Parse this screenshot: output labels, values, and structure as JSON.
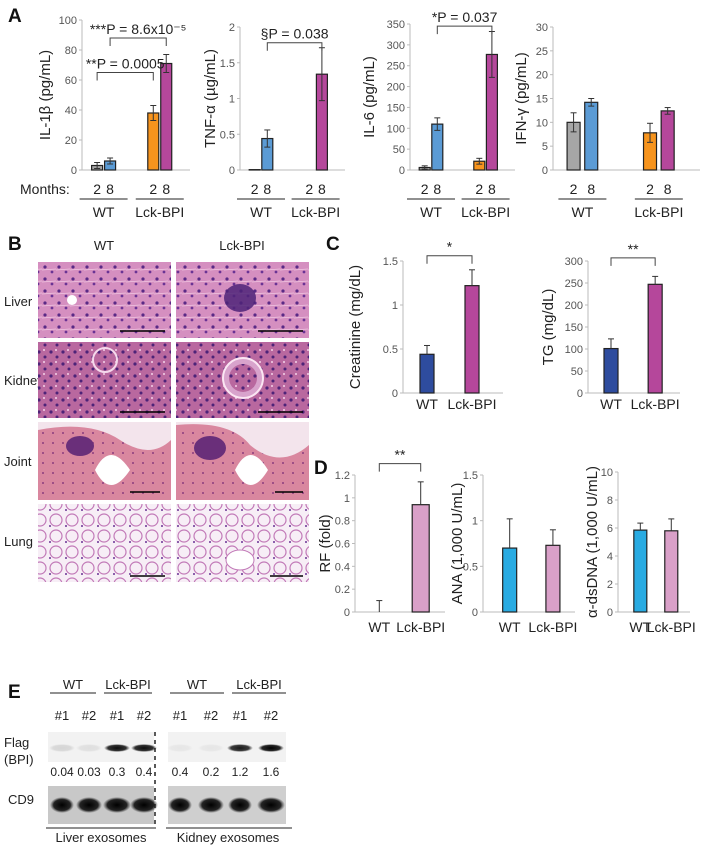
{
  "panels": {
    "a": "A",
    "b": "B",
    "c": "C",
    "d": "D",
    "e": "E"
  },
  "months_label": "Months:",
  "histology": {
    "columns": [
      "WT",
      "Lck-BPI"
    ],
    "rows": [
      "Liver",
      "Kidney",
      "Joint",
      "Lung"
    ]
  },
  "blot": {
    "groups": [
      "WT",
      "Lck-BPI",
      "WT",
      "Lck-BPI"
    ],
    "lanes": [
      "#1",
      "#2",
      "#1",
      "#2",
      "#1",
      "#2",
      "#1",
      "#2"
    ],
    "row_labels": {
      "flag_line1": "Flag",
      "flag_line2": "(BPI)",
      "cd9": "CD9"
    },
    "quant": [
      "0.04",
      "0.03",
      "0.3",
      "0.4",
      "0.4",
      "0.2",
      "1.2",
      "1.6"
    ],
    "tissues": [
      "Liver exosomes",
      "Kidney exosomes"
    ]
  },
  "colors": {
    "wt_2m": "#a6a6a6",
    "wt_8m": "#5b9bd5",
    "lck_2m": "#f7941d",
    "lck_8m": "#b5479b",
    "c_wt": "#2e4c9e",
    "c_lck": "#b5479b",
    "d_wt": "#29abe2",
    "d_lck": "#d9a0c8"
  },
  "chart_data": [
    {
      "type": "bar",
      "panel": "A",
      "ylabel": "IL-1β (pg/mL)",
      "ylim": [
        0,
        100
      ],
      "yticks": [
        "0",
        "20",
        "40",
        "60",
        "80",
        "100"
      ],
      "groups": [
        "WT",
        "Lck-BPI"
      ],
      "bar_labels": [
        "2",
        "8",
        "2",
        "8"
      ],
      "values": [
        3,
        6,
        38,
        71
      ],
      "errors": [
        2,
        2,
        5,
        6
      ],
      "colors": [
        "#a6a6a6",
        "#5b9bd5",
        "#f7941d",
        "#b5479b"
      ],
      "brackets": [
        {
          "from": 1,
          "to": 3,
          "level": 88,
          "label": "***P = 8.6x10⁻⁵"
        },
        {
          "from": 0,
          "to": 2,
          "level": 65,
          "label": "**P = 0.0005"
        }
      ]
    },
    {
      "type": "bar",
      "panel": "A",
      "ylabel": "TNF-α (µg/mL)",
      "ylim": [
        0,
        2
      ],
      "yticks": [
        "0",
        "0.5",
        "1",
        "1.5",
        "2"
      ],
      "groups": [
        "WT",
        "Lck-BPI"
      ],
      "bar_labels": [
        "2",
        "8",
        "2",
        "8"
      ],
      "values": [
        0.005,
        0.44,
        0,
        1.34
      ],
      "errors": [
        0,
        0.12,
        0,
        0.37
      ],
      "colors": [
        "#a6a6a6",
        "#5b9bd5",
        "#f7941d",
        "#b5479b"
      ],
      "brackets": [
        {
          "from": 1,
          "to": 3,
          "level": 1.78,
          "label": "§P = 0.038"
        }
      ]
    },
    {
      "type": "bar",
      "panel": "A",
      "ylabel": "IL-6 (pg/mL)",
      "ylim": [
        0,
        350
      ],
      "yticks": [
        "0",
        "50",
        "100",
        "150",
        "200",
        "250",
        "300",
        "350"
      ],
      "groups": [
        "WT",
        "Lck-BPI"
      ],
      "bar_labels": [
        "2",
        "8",
        "2",
        "8"
      ],
      "values": [
        6,
        110,
        21,
        277
      ],
      "errors": [
        4,
        15,
        7,
        55
      ],
      "colors": [
        "#a6a6a6",
        "#5b9bd5",
        "#f7941d",
        "#b5479b"
      ],
      "brackets": [
        {
          "from": 1,
          "to": 3,
          "level": 345,
          "label": "*P = 0.037"
        }
      ]
    },
    {
      "type": "bar",
      "panel": "A",
      "ylabel": "IFN-γ (pg/mL)",
      "ylim": [
        0,
        30
      ],
      "yticks": [
        "0",
        "5",
        "10",
        "15",
        "20",
        "25",
        "30"
      ],
      "groups": [
        "WT",
        "Lck-BPI"
      ],
      "bar_labels": [
        "2",
        "8",
        "2",
        "8"
      ],
      "values": [
        10,
        14.2,
        7.8,
        12.4
      ],
      "errors": [
        2,
        0.8,
        2,
        0.7
      ],
      "colors": [
        "#a6a6a6",
        "#5b9bd5",
        "#f7941d",
        "#b5479b"
      ],
      "brackets": []
    },
    {
      "type": "bar",
      "panel": "C",
      "ylabel": "Creatinine (mg/dL)",
      "ylim": [
        0,
        1.5
      ],
      "yticks": [
        "0",
        "0.5",
        "1",
        "1.5"
      ],
      "categories": [
        "WT",
        "Lck-BPI"
      ],
      "values": [
        0.44,
        1.22
      ],
      "errors": [
        0.1,
        0.18
      ],
      "colors": [
        "#2e4c9e",
        "#b5479b"
      ],
      "brackets": [
        {
          "from": 0,
          "to": 1,
          "level": 1.56,
          "label": "*"
        }
      ]
    },
    {
      "type": "bar",
      "panel": "C",
      "ylabel": "TG (mg/dL)",
      "ylim": [
        0,
        300
      ],
      "yticks": [
        "0",
        "50",
        "100",
        "150",
        "200",
        "250",
        "300"
      ],
      "categories": [
        "WT",
        "Lck-BPI"
      ],
      "values": [
        101,
        247
      ],
      "errors": [
        22,
        18
      ],
      "colors": [
        "#2e4c9e",
        "#b5479b"
      ],
      "brackets": [
        {
          "from": 0,
          "to": 1,
          "level": 307,
          "label": "**"
        }
      ]
    },
    {
      "type": "bar",
      "panel": "D",
      "ylabel": "RF (fold)",
      "ylim": [
        0,
        1.2
      ],
      "yticks": [
        "0",
        "0.2",
        "0.4",
        "0.6",
        "0.8",
        "1",
        "1.2"
      ],
      "categories": [
        "WT",
        "Lck-BPI"
      ],
      "values": [
        0,
        0.94
      ],
      "errors": [
        0.1,
        0.2
      ],
      "colors": [
        "#29abe2",
        "#d9a0c8"
      ],
      "brackets": [
        {
          "from": 0,
          "to": 1,
          "level": 1.3,
          "label": "**"
        }
      ]
    },
    {
      "type": "bar",
      "panel": "D",
      "ylabel": "ANA (1,000 U/mL)",
      "ylim": [
        0,
        1.5
      ],
      "yticks": [
        "0",
        "0.5",
        "1",
        "1.5"
      ],
      "categories": [
        "WT",
        "Lck-BPI"
      ],
      "values": [
        0.7,
        0.73
      ],
      "errors": [
        0.32,
        0.17
      ],
      "colors": [
        "#29abe2",
        "#d9a0c8"
      ],
      "brackets": []
    },
    {
      "type": "bar",
      "panel": "D",
      "ylabel": "α-dsDNA (1,000 U/mL)",
      "ylim": [
        0,
        10
      ],
      "yticks": [
        "0",
        "2",
        "4",
        "6",
        "8",
        "10"
      ],
      "categories": [
        "WT",
        "Lck-BPI"
      ],
      "values": [
        5.85,
        5.8
      ],
      "errors": [
        0.5,
        0.85
      ],
      "colors": [
        "#29abe2",
        "#d9a0c8"
      ],
      "brackets": []
    }
  ]
}
